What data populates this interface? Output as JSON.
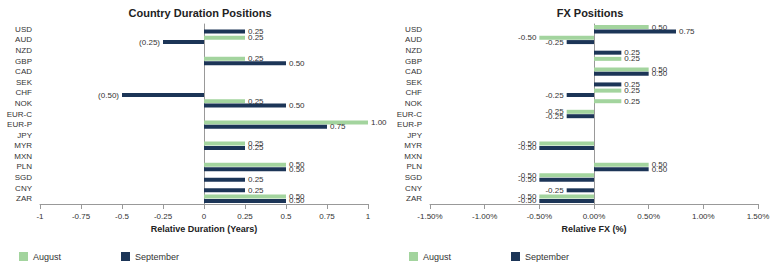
{
  "chart_data": [
    {
      "type": "bar",
      "orientation": "horizontal",
      "title": "Country Duration Positions",
      "xlabel": "Relative Duration (Years)",
      "categories": [
        "USD",
        "AUD",
        "NZD",
        "GBP",
        "CAD",
        "SEK",
        "CHF",
        "NOK",
        "EUR-C",
        "EUR-P",
        "JPY",
        "MYR",
        "MXN",
        "PLN",
        "SGD",
        "CNY",
        "ZAR"
      ],
      "series": [
        {
          "name": "August",
          "color": "#a3d49e",
          "values": [
            null,
            0.25,
            null,
            0.25,
            null,
            null,
            null,
            0.25,
            null,
            1.0,
            null,
            0.25,
            null,
            0.5,
            null,
            null,
            0.5
          ],
          "value_labels": [
            null,
            "0.25",
            null,
            "0.25",
            null,
            null,
            null,
            "0.25",
            null,
            "1.00",
            null,
            "0.25",
            null,
            "0.50",
            null,
            null,
            "0.50"
          ]
        },
        {
          "name": "September",
          "color": "#1c3557",
          "values": [
            0.25,
            -0.25,
            null,
            0.5,
            null,
            null,
            -0.5,
            0.5,
            null,
            0.75,
            null,
            0.25,
            null,
            0.5,
            0.25,
            0.25,
            0.5
          ],
          "value_labels": [
            "0.25",
            "(0.25)",
            null,
            "0.50",
            null,
            null,
            "(0.50)",
            "0.50",
            null,
            "0.75",
            null,
            "0.25",
            null,
            "0.50",
            "0.25",
            "0.25",
            "0.50"
          ]
        }
      ],
      "xlim": [
        -1,
        1
      ],
      "xticks": [
        -1,
        -0.75,
        -0.5,
        -0.25,
        0,
        0.25,
        0.5,
        0.75,
        1
      ],
      "data_labels": true,
      "grid": false,
      "legend": "bottom-left"
    },
    {
      "type": "bar",
      "orientation": "horizontal",
      "title": "FX Positions",
      "xlabel": "Relative FX (%)",
      "categories": [
        "USD",
        "AUD",
        "NZD",
        "GBP",
        "CAD",
        "SEK",
        "CHF",
        "NOK",
        "EUR-C",
        "EUR-P",
        "JPY",
        "MYR",
        "MXN",
        "PLN",
        "SGD",
        "CNY",
        "ZAR"
      ],
      "series": [
        {
          "name": "August",
          "color": "#a3d49e",
          "values": [
            0.5,
            -0.5,
            null,
            0.25,
            0.5,
            null,
            0.25,
            0.25,
            -0.25,
            null,
            null,
            -0.5,
            null,
            0.5,
            -0.5,
            null,
            -0.5
          ],
          "value_labels": [
            "0.50",
            "-0.50",
            null,
            "0.25",
            "0.50",
            null,
            "0.25",
            "0.25",
            "-0.25",
            null,
            null,
            "-0.50",
            null,
            "0.50",
            "-0.50",
            null,
            "-0.50"
          ]
        },
        {
          "name": "September",
          "color": "#1c3557",
          "values": [
            0.75,
            -0.25,
            0.25,
            null,
            0.5,
            0.25,
            -0.25,
            null,
            -0.25,
            null,
            null,
            -0.5,
            null,
            0.5,
            -0.5,
            -0.25,
            -0.5
          ],
          "value_labels": [
            "0.75",
            "-0.25",
            "0.25",
            null,
            "0.50",
            "0.25",
            "-0.25",
            null,
            "-0.25",
            null,
            null,
            "-0.50",
            null,
            "0.50",
            "-0.50",
            "-0.25",
            "-0.50"
          ]
        }
      ],
      "xlim": [
        -1.5,
        1.5
      ],
      "xticks": [
        {
          "value": -1.5,
          "label": "-1.50%"
        },
        {
          "value": -1,
          "label": "-1.00%"
        },
        {
          "value": -0.5,
          "label": "-0.50%"
        },
        {
          "value": 0,
          "label": "0.00%"
        },
        {
          "value": 0.5,
          "label": "0.50%"
        },
        {
          "value": 1,
          "label": "1.00%"
        },
        {
          "value": 1.5,
          "label": "1.50%"
        }
      ],
      "data_labels": true,
      "grid": false,
      "legend": "bottom-left"
    }
  ]
}
